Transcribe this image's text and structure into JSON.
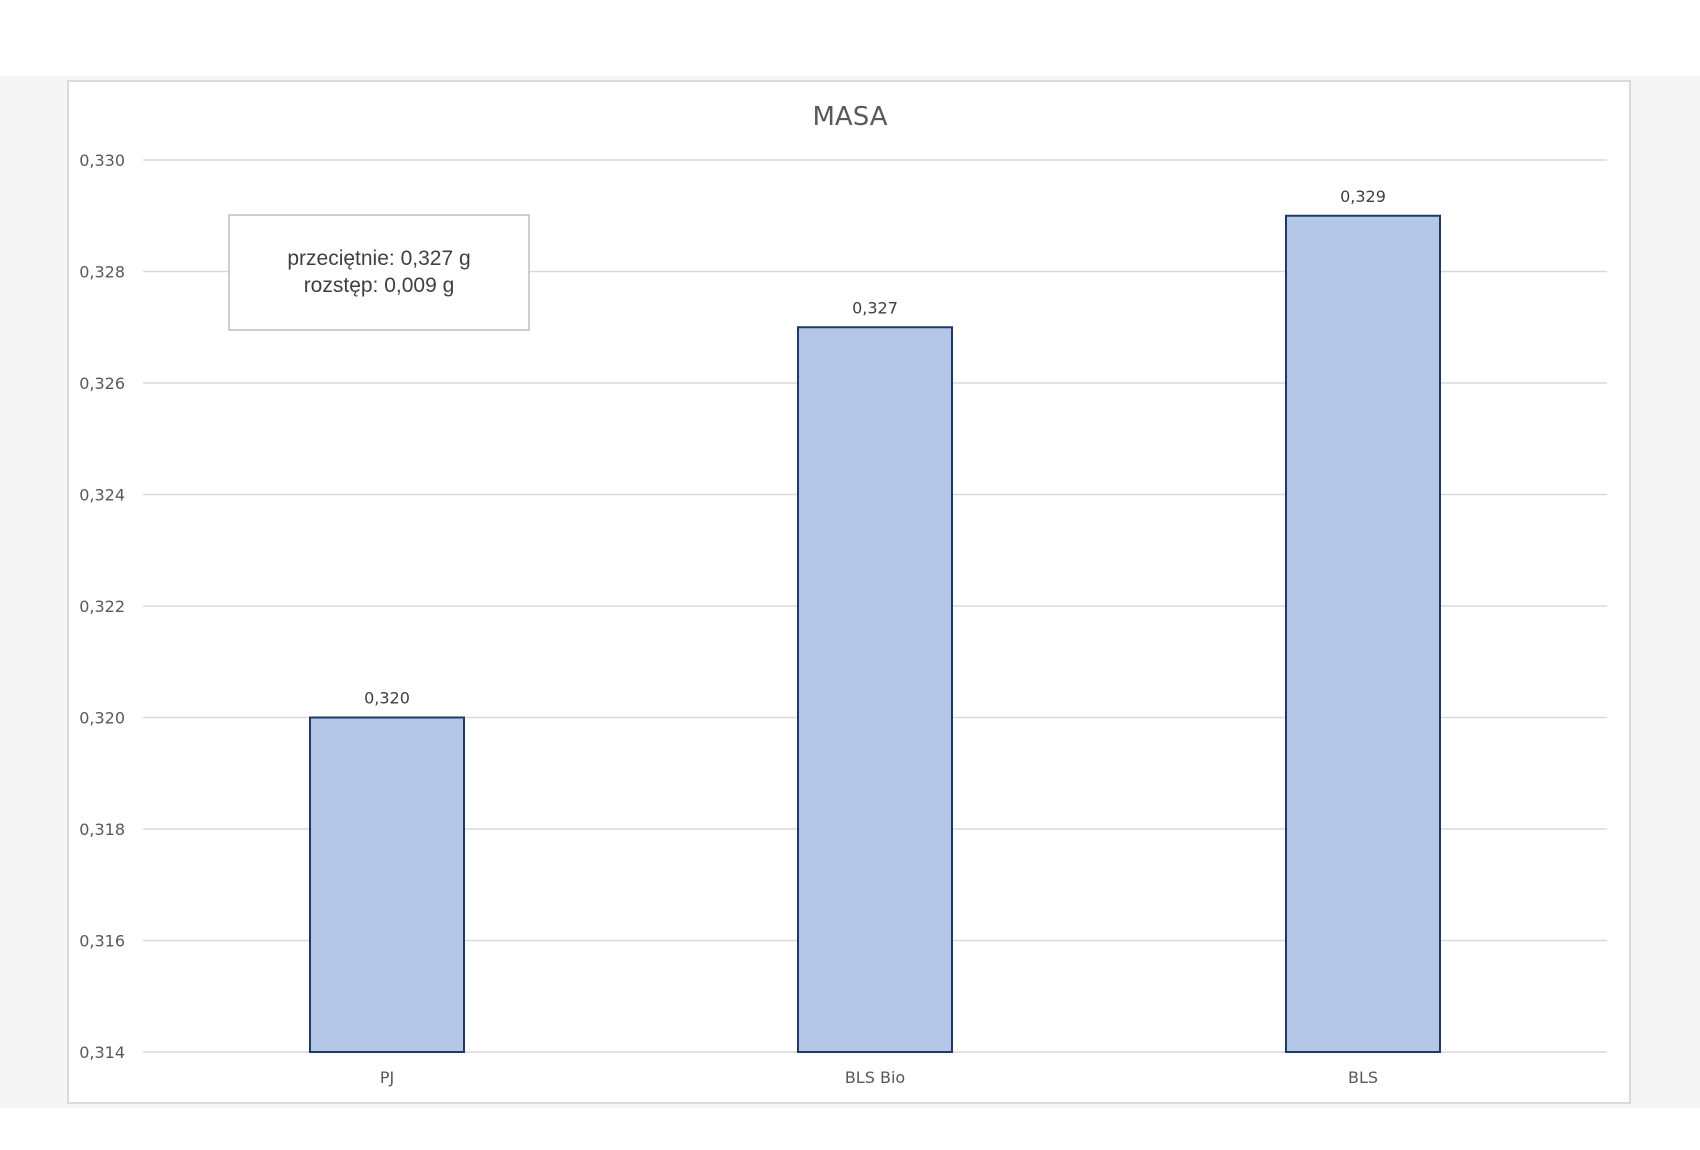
{
  "chart_data": {
    "type": "bar",
    "title": "MASA",
    "categories": [
      "PJ",
      "BLS Bio",
      "BLS"
    ],
    "values": [
      0.32,
      0.327,
      0.329
    ],
    "data_labels": [
      "0,320",
      "0,327",
      "0,329"
    ],
    "ylim": [
      0.314,
      0.33
    ],
    "yticks": [
      0.314,
      0.316,
      0.318,
      0.32,
      0.322,
      0.324,
      0.326,
      0.328,
      0.33
    ],
    "ytick_labels": [
      "0,314",
      "0,316",
      "0,318",
      "0,320",
      "0,322",
      "0,324",
      "0,326",
      "0,328",
      "0,330"
    ],
    "grid": true,
    "legend": "none",
    "bar_fill": "#b4c7e7",
    "bar_stroke": "#1f3864",
    "annotation": {
      "line1": "przeciętnie: 0,327 g",
      "line2": "rozstęp: 0,009 g"
    }
  }
}
